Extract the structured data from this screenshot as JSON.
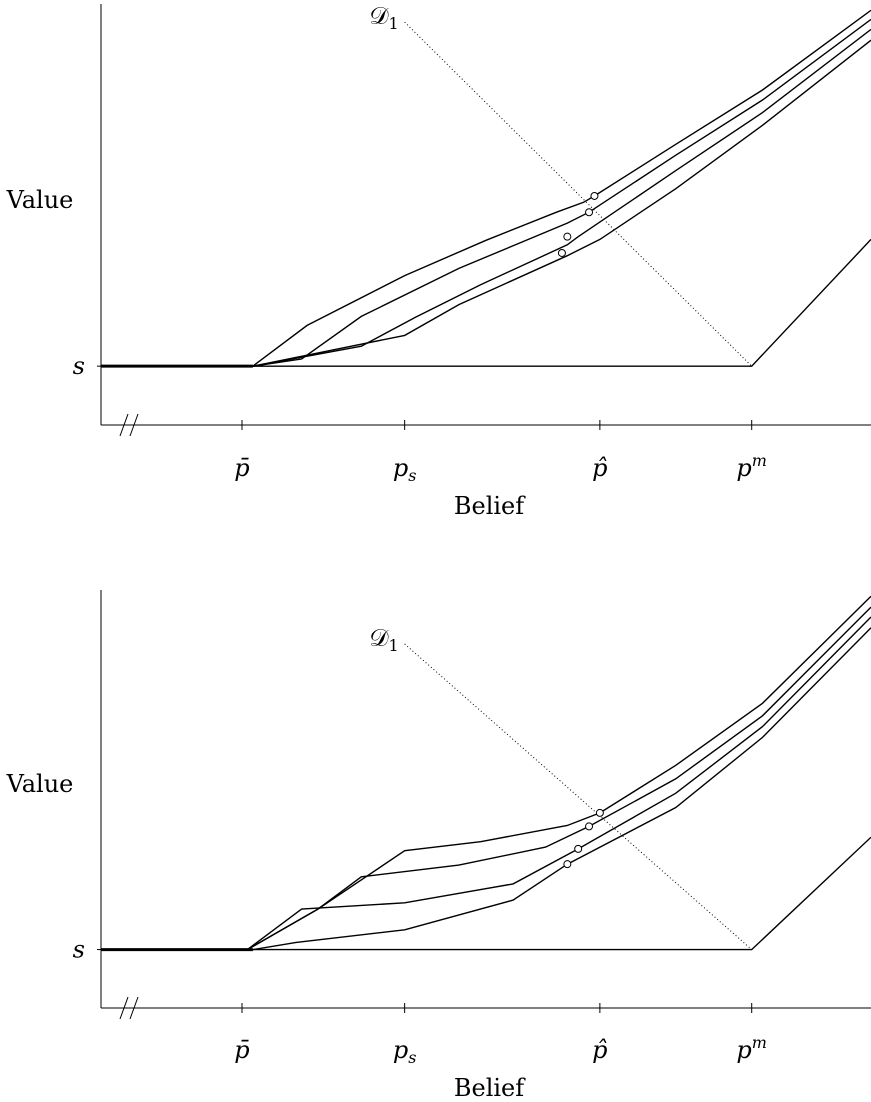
{
  "chart_data": [
    {
      "type": "line",
      "ylabel": "Value",
      "xlabel": "Belief",
      "y_tick_label": "s",
      "x_ticks": [
        {
          "label": "p̄",
          "x": 0.3
        },
        {
          "label": "p",
          "sub": "s",
          "x": 0.45
        },
        {
          "label": "p̂",
          "x": 0.63
        },
        {
          "label": "p",
          "sup": "m",
          "x": 0.77
        }
      ],
      "xlim": [
        0.17,
        0.88
      ],
      "ylim": [
        -0.65,
        4.0
      ],
      "axis_break": "//",
      "annotation": {
        "label": "𝒟",
        "sub": "1"
      },
      "series": [
        {
          "x": [
            0.17,
            0.31,
            0.36,
            0.45,
            0.525,
            0.59,
            0.615,
            0.625,
            0.7,
            0.78,
            0.88
          ],
          "y": [
            0,
            0,
            0.45,
            1.0,
            1.39,
            1.7,
            1.81,
            1.88,
            2.45,
            3.05,
            3.93
          ]
        },
        {
          "x": [
            0.17,
            0.31,
            0.355,
            0.41,
            0.5,
            0.6,
            0.62,
            0.7,
            0.78,
            0.88
          ],
          "y": [
            0,
            0,
            0.08,
            0.55,
            1.08,
            1.58,
            1.7,
            2.33,
            2.94,
            3.83
          ]
        },
        {
          "x": [
            0.17,
            0.31,
            0.41,
            0.46,
            0.52,
            0.6,
            0.61,
            0.7,
            0.78,
            0.88
          ],
          "y": [
            0,
            0,
            0.22,
            0.54,
            0.9,
            1.34,
            1.43,
            2.16,
            2.8,
            3.72
          ]
        },
        {
          "x": [
            0.17,
            0.31,
            0.45,
            0.5,
            0.6,
            0.63,
            0.7,
            0.78,
            0.88
          ],
          "y": [
            0,
            0,
            0.34,
            0.68,
            1.22,
            1.4,
            1.96,
            2.66,
            3.6
          ]
        },
        {
          "x": [
            0.17,
            0.77,
            0.88
          ],
          "y": [
            0,
            0,
            1.4
          ]
        }
      ],
      "markers": [
        {
          "x": 0.625,
          "y": 1.88
        },
        {
          "x": 0.62,
          "y": 1.7
        },
        {
          "x": 0.6,
          "y": 1.43
        },
        {
          "x": 0.595,
          "y": 1.25
        }
      ],
      "dotted_line": {
        "x": [
          0.45,
          0.77
        ],
        "y": [
          3.8,
          0
        ]
      }
    },
    {
      "type": "line",
      "ylabel": "Value",
      "xlabel": "Belief",
      "y_tick_label": "s",
      "x_ticks": [
        {
          "label": "p̄",
          "x": 0.3
        },
        {
          "label": "p",
          "sub": "s",
          "x": 0.45
        },
        {
          "label": "p̂",
          "x": 0.63
        },
        {
          "label": "p",
          "sup": "m",
          "x": 0.77
        }
      ],
      "xlim": [
        0.17,
        0.88
      ],
      "ylim": [
        -0.65,
        4.0
      ],
      "axis_break": "//",
      "annotation": {
        "label": "𝒟",
        "sub": "1"
      },
      "series": [
        {
          "x": [
            0.17,
            0.305,
            0.37,
            0.45,
            0.52,
            0.6,
            0.63,
            0.7,
            0.78,
            0.88
          ],
          "y": [
            0,
            0,
            0.45,
            1.1,
            1.2,
            1.38,
            1.52,
            2.05,
            2.74,
            3.93
          ]
        },
        {
          "x": [
            0.17,
            0.305,
            0.37,
            0.41,
            0.5,
            0.58,
            0.62,
            0.7,
            0.78,
            0.88
          ],
          "y": [
            0,
            0,
            0.45,
            0.81,
            0.94,
            1.14,
            1.37,
            1.9,
            2.6,
            3.81
          ]
        },
        {
          "x": [
            0.17,
            0.305,
            0.355,
            0.45,
            0.55,
            0.61,
            0.7,
            0.78,
            0.88
          ],
          "y": [
            0,
            0,
            0.45,
            0.52,
            0.73,
            1.12,
            1.74,
            2.48,
            3.7
          ]
        },
        {
          "x": [
            0.17,
            0.31,
            0.35,
            0.45,
            0.55,
            0.6,
            0.7,
            0.78,
            0.88
          ],
          "y": [
            0,
            0,
            0.08,
            0.22,
            0.55,
            0.95,
            1.58,
            2.36,
            3.58
          ]
        },
        {
          "x": [
            0.17,
            0.77,
            0.88
          ],
          "y": [
            0,
            0,
            1.25
          ]
        }
      ],
      "markers": [
        {
          "x": 0.63,
          "y": 1.52
        },
        {
          "x": 0.62,
          "y": 1.37
        },
        {
          "x": 0.61,
          "y": 1.12
        },
        {
          "x": 0.6,
          "y": 0.95
        }
      ],
      "dotted_line": {
        "x": [
          0.45,
          0.77
        ],
        "y": [
          3.4,
          0
        ]
      }
    }
  ]
}
